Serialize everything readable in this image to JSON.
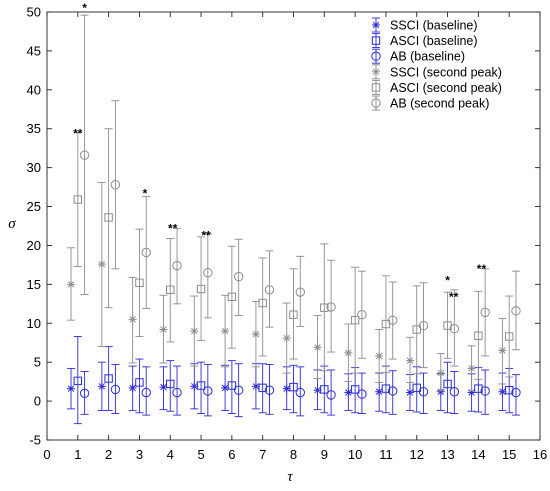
{
  "chart_data": {
    "type": "scatter",
    "xlabel": "τ",
    "ylabel": "σ",
    "xlim": [
      0,
      16
    ],
    "ylim": [
      -5,
      50
    ],
    "x_ticks": [
      0,
      1,
      2,
      3,
      4,
      5,
      6,
      7,
      8,
      9,
      10,
      11,
      12,
      13,
      14,
      15,
      16
    ],
    "y_ticks": [
      -5,
      0,
      5,
      10,
      15,
      20,
      25,
      30,
      35,
      40,
      45,
      50
    ],
    "grid": false,
    "legend_position": "top-right",
    "x": [
      1,
      2,
      3,
      4,
      5,
      6,
      7,
      8,
      9,
      10,
      11,
      12,
      13,
      14,
      15
    ],
    "series": [
      {
        "name": "SSCI (baseline)",
        "marker": "asterisk",
        "color": "#2b2bd1",
        "mean": [
          1.6,
          1.9,
          1.7,
          1.8,
          1.9,
          1.7,
          1.9,
          1.6,
          1.4,
          1.1,
          1.2,
          1.1,
          1.2,
          1.1,
          1.2
        ],
        "lower": [
          -1.0,
          -1.2,
          -1.2,
          -1.1,
          -1.0,
          -1.2,
          -1.0,
          -1.1,
          -1.1,
          -1.2,
          -1.3,
          -1.2,
          -1.2,
          -1.3,
          -1.2
        ],
        "upper": [
          4.2,
          5.0,
          4.5,
          4.4,
          4.8,
          4.6,
          4.8,
          4.4,
          4.0,
          3.5,
          3.6,
          3.4,
          3.5,
          3.5,
          3.6
        ]
      },
      {
        "name": "ASCI (baseline)",
        "marker": "square",
        "color": "#2b2bd1",
        "mean": [
          2.6,
          2.9,
          2.4,
          2.2,
          2.0,
          2.0,
          1.7,
          1.8,
          1.5,
          1.5,
          1.6,
          1.7,
          2.2,
          1.6,
          1.4
        ],
        "lower": [
          -2.9,
          -1.2,
          -1.5,
          -1.3,
          -1.6,
          -1.6,
          -1.5,
          -1.5,
          -1.5,
          -1.5,
          -1.5,
          -1.4,
          -1.5,
          -1.4,
          -1.5
        ],
        "upper": [
          8.3,
          7.0,
          5.4,
          5.2,
          5.0,
          5.2,
          4.8,
          4.6,
          4.5,
          4.3,
          4.5,
          4.4,
          5.0,
          4.3,
          4.2
        ],
        "cap_color": "#2b2bd1"
      },
      {
        "name": "AB (baseline)",
        "marker": "circle",
        "color": "#2b2bd1",
        "mean": [
          1.0,
          1.5,
          1.1,
          1.1,
          1.3,
          1.4,
          1.4,
          1.1,
          0.8,
          0.9,
          1.3,
          1.2,
          1.2,
          1.3,
          1.1
        ],
        "lower": [
          -1.7,
          -1.6,
          -1.8,
          -1.8,
          -1.9,
          -2.0,
          -1.7,
          -1.9,
          -1.8,
          -1.6,
          -1.7,
          -1.6,
          -1.6,
          -1.7,
          -1.8
        ],
        "upper": [
          3.8,
          4.7,
          4.4,
          4.5,
          4.7,
          4.8,
          4.7,
          4.4,
          4.0,
          3.6,
          3.9,
          3.6,
          3.8,
          4.0,
          3.4
        ]
      },
      {
        "name": "SSCI (second peak)",
        "marker": "asterisk",
        "color": "#8c8c8c",
        "mean": [
          15.0,
          17.6,
          10.5,
          9.2,
          9.0,
          9.0,
          8.6,
          8.1,
          6.9,
          6.2,
          5.8,
          5.2,
          3.6,
          4.2,
          6.5
        ],
        "lower": [
          10.4,
          7.0,
          4.9,
          4.9,
          4.5,
          4.4,
          4.4,
          3.6,
          2.9,
          2.5,
          2.4,
          2.4,
          1.3,
          1.3,
          2.2
        ],
        "upper": [
          19.7,
          28.1,
          15.9,
          13.6,
          13.5,
          13.6,
          12.8,
          12.6,
          11.0,
          9.9,
          9.2,
          8.2,
          6.1,
          7.1,
          10.6
        ]
      },
      {
        "name": "ASCI (second peak)",
        "marker": "square",
        "color": "#8c8c8c",
        "mean": [
          25.9,
          23.6,
          15.2,
          14.3,
          14.4,
          13.4,
          12.6,
          11.1,
          12.0,
          10.4,
          9.9,
          9.2,
          9.7,
          8.4,
          8.3
        ],
        "lower": [
          17.3,
          12.0,
          8.3,
          7.6,
          7.8,
          6.8,
          5.8,
          5.4,
          3.9,
          3.6,
          3.7,
          3.5,
          5.5,
          2.8,
          3.1
        ],
        "upper": [
          34.5,
          35.0,
          22.1,
          20.9,
          21.1,
          19.9,
          18.4,
          17.0,
          20.2,
          17.2,
          16.1,
          14.8,
          14.0,
          14.1,
          13.5
        ]
      },
      {
        "name": "AB (second peak)",
        "marker": "circle",
        "color": "#8c8c8c",
        "mean": [
          31.6,
          27.8,
          19.1,
          17.4,
          16.5,
          16.0,
          14.3,
          14.0,
          12.1,
          11.1,
          10.4,
          9.7,
          9.3,
          11.4,
          11.6
        ],
        "lower": [
          13.7,
          17.0,
          11.9,
          12.5,
          10.7,
          11.0,
          9.5,
          9.6,
          6.3,
          5.5,
          5.4,
          4.3,
          4.5,
          5.8,
          6.6
        ],
        "upper": [
          49.6,
          38.6,
          26.3,
          22.2,
          21.5,
          20.8,
          19.3,
          18.6,
          18.1,
          16.7,
          15.3,
          15.2,
          14.3,
          17.0,
          16.7
        ]
      }
    ],
    "annotations": [
      {
        "text": "*",
        "x": 1.22,
        "y": 50.5
      },
      {
        "text": "**",
        "x": 1.0,
        "y": 34.4
      },
      {
        "text": "*",
        "x": 3.18,
        "y": 26.7
      },
      {
        "text": "**",
        "x": 4.08,
        "y": 22.2
      },
      {
        "text": "**",
        "x": 5.16,
        "y": 21.3
      },
      {
        "text": "*",
        "x": 13.0,
        "y": 15.5
      },
      {
        "text": "**",
        "x": 13.2,
        "y": 13.4
      },
      {
        "text": "**",
        "x": 14.1,
        "y": 17.0
      }
    ]
  }
}
